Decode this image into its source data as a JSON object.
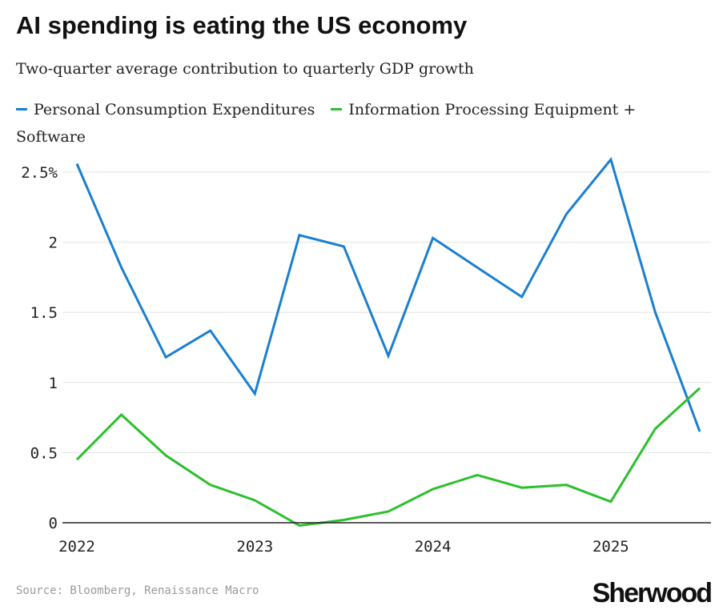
{
  "title": "AI spending is eating the US economy",
  "subtitle": "Two-quarter average contribution to quarterly GDP growth",
  "source": "Source: Bloomberg, Renaissance Macro",
  "brand": "Sherwood",
  "colors": {
    "series_1": "#1a7fd1",
    "series_2": "#2dbf2d",
    "grid": "#e3e3e3",
    "axis": "#222222"
  },
  "chart_data": {
    "type": "line",
    "title": "AI spending is eating the US economy",
    "subtitle": "Two-quarter average contribution to quarterly GDP growth",
    "xlabel": "",
    "ylabel": "",
    "x": [
      2022.0,
      2022.25,
      2022.5,
      2022.75,
      2023.0,
      2023.25,
      2023.5,
      2023.75,
      2024.0,
      2024.25,
      2024.5,
      2024.75,
      2025.0,
      2025.25,
      2025.5
    ],
    "xlim": [
      2022.0,
      2025.5
    ],
    "ylim": [
      0,
      2.5
    ],
    "x_ticks": [
      {
        "value": 2022,
        "label": "2022"
      },
      {
        "value": 2023,
        "label": "2023"
      },
      {
        "value": 2024,
        "label": "2024"
      },
      {
        "value": 2025,
        "label": "2025"
      }
    ],
    "y_ticks": [
      {
        "value": 0,
        "label": "0"
      },
      {
        "value": 0.5,
        "label": "0.5"
      },
      {
        "value": 1,
        "label": "1"
      },
      {
        "value": 1.5,
        "label": "1.5"
      },
      {
        "value": 2,
        "label": "2"
      },
      {
        "value": 2.5,
        "label": "2.5%"
      }
    ],
    "grid": true,
    "legend_position": "top-left",
    "series": [
      {
        "name": "Personal Consumption Expenditures",
        "color": "#1a7fd1",
        "values": [
          2.56,
          1.82,
          1.18,
          1.37,
          0.92,
          2.05,
          1.97,
          1.19,
          2.03,
          1.82,
          1.61,
          2.2,
          2.59,
          1.5,
          0.65
        ]
      },
      {
        "name": "Information Processing Equipment + Software",
        "color": "#2dbf2d",
        "values": [
          0.45,
          0.77,
          0.48,
          0.27,
          0.16,
          -0.02,
          0.02,
          0.08,
          0.24,
          0.34,
          0.25,
          0.27,
          0.15,
          0.67,
          0.96
        ]
      }
    ]
  }
}
